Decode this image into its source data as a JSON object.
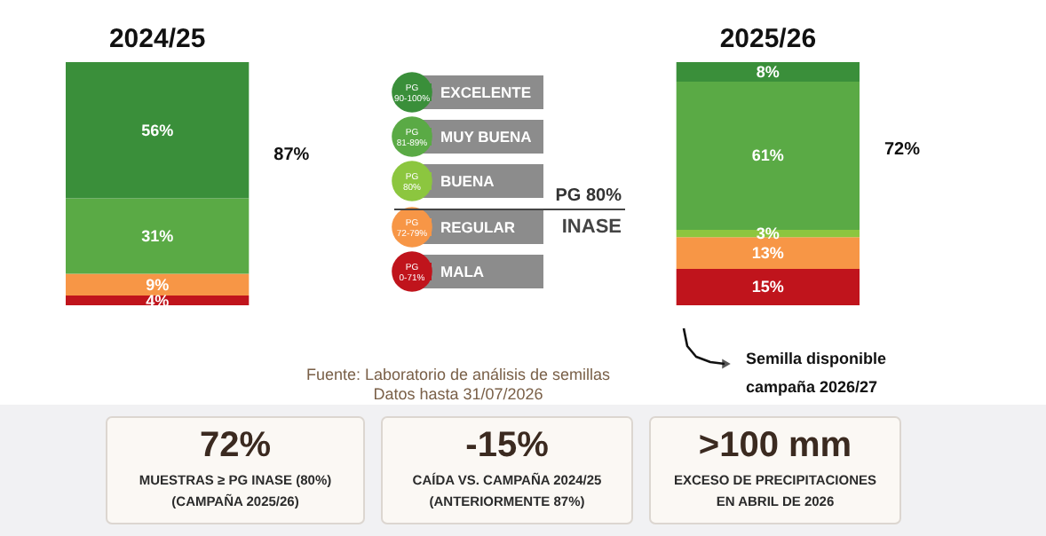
{
  "chart_data": {
    "type": "bar",
    "stacked": true,
    "tick_labels": "x",
    "grid": false,
    "legend": "center",
    "categories": [
      "2024/25",
      "2025/26"
    ],
    "series": [
      {
        "name": "MALA",
        "color": "#c0141c",
        "values": [
          4,
          15
        ],
        "value_labels": [
          "4%",
          "15%"
        ]
      },
      {
        "name": "REGULAR",
        "color": "#f79646",
        "values": [
          9,
          13
        ],
        "value_labels": [
          "9%",
          "13%"
        ]
      },
      {
        "name": "BUENA",
        "color": "#8cc63f",
        "values": [
          null,
          3
        ],
        "value_labels": [
          null,
          "3%"
        ]
      },
      {
        "name": "MUY BUENA",
        "color": "#5aaa45",
        "values": [
          31,
          61
        ],
        "value_labels": [
          "31%",
          "61%"
        ]
      },
      {
        "name": "EXCELENTE",
        "color": "#3a8f3a",
        "values": [
          56,
          8
        ],
        "value_labels": [
          "56%",
          "8%"
        ]
      }
    ],
    "annotations": [
      "87%",
      "72%",
      "PG 0-71%",
      "PG 72-79%",
      "PG 80%",
      "PG 81-89%",
      "PG 90-100%",
      "PG 80%",
      "INASE",
      "Fuente: Laboratorio de análisis de semillas",
      "Datos hasta 31/07/2026",
      "Semilla disponible",
      "campaña 2026/27",
      "72%",
      "MUESTRAS ≥ PG INASE (80%)",
      "(CAMPAÑA 2025/26)",
      "-15%",
      "CAÍDA VS. CAMPAÑA 2024/25",
      "(ANTERIORMENTE 87%)",
      ">100 mm",
      "EXCESO DE PRECIPITACIONES",
      "EN ABRIL DE 2026"
    ]
  }
}
